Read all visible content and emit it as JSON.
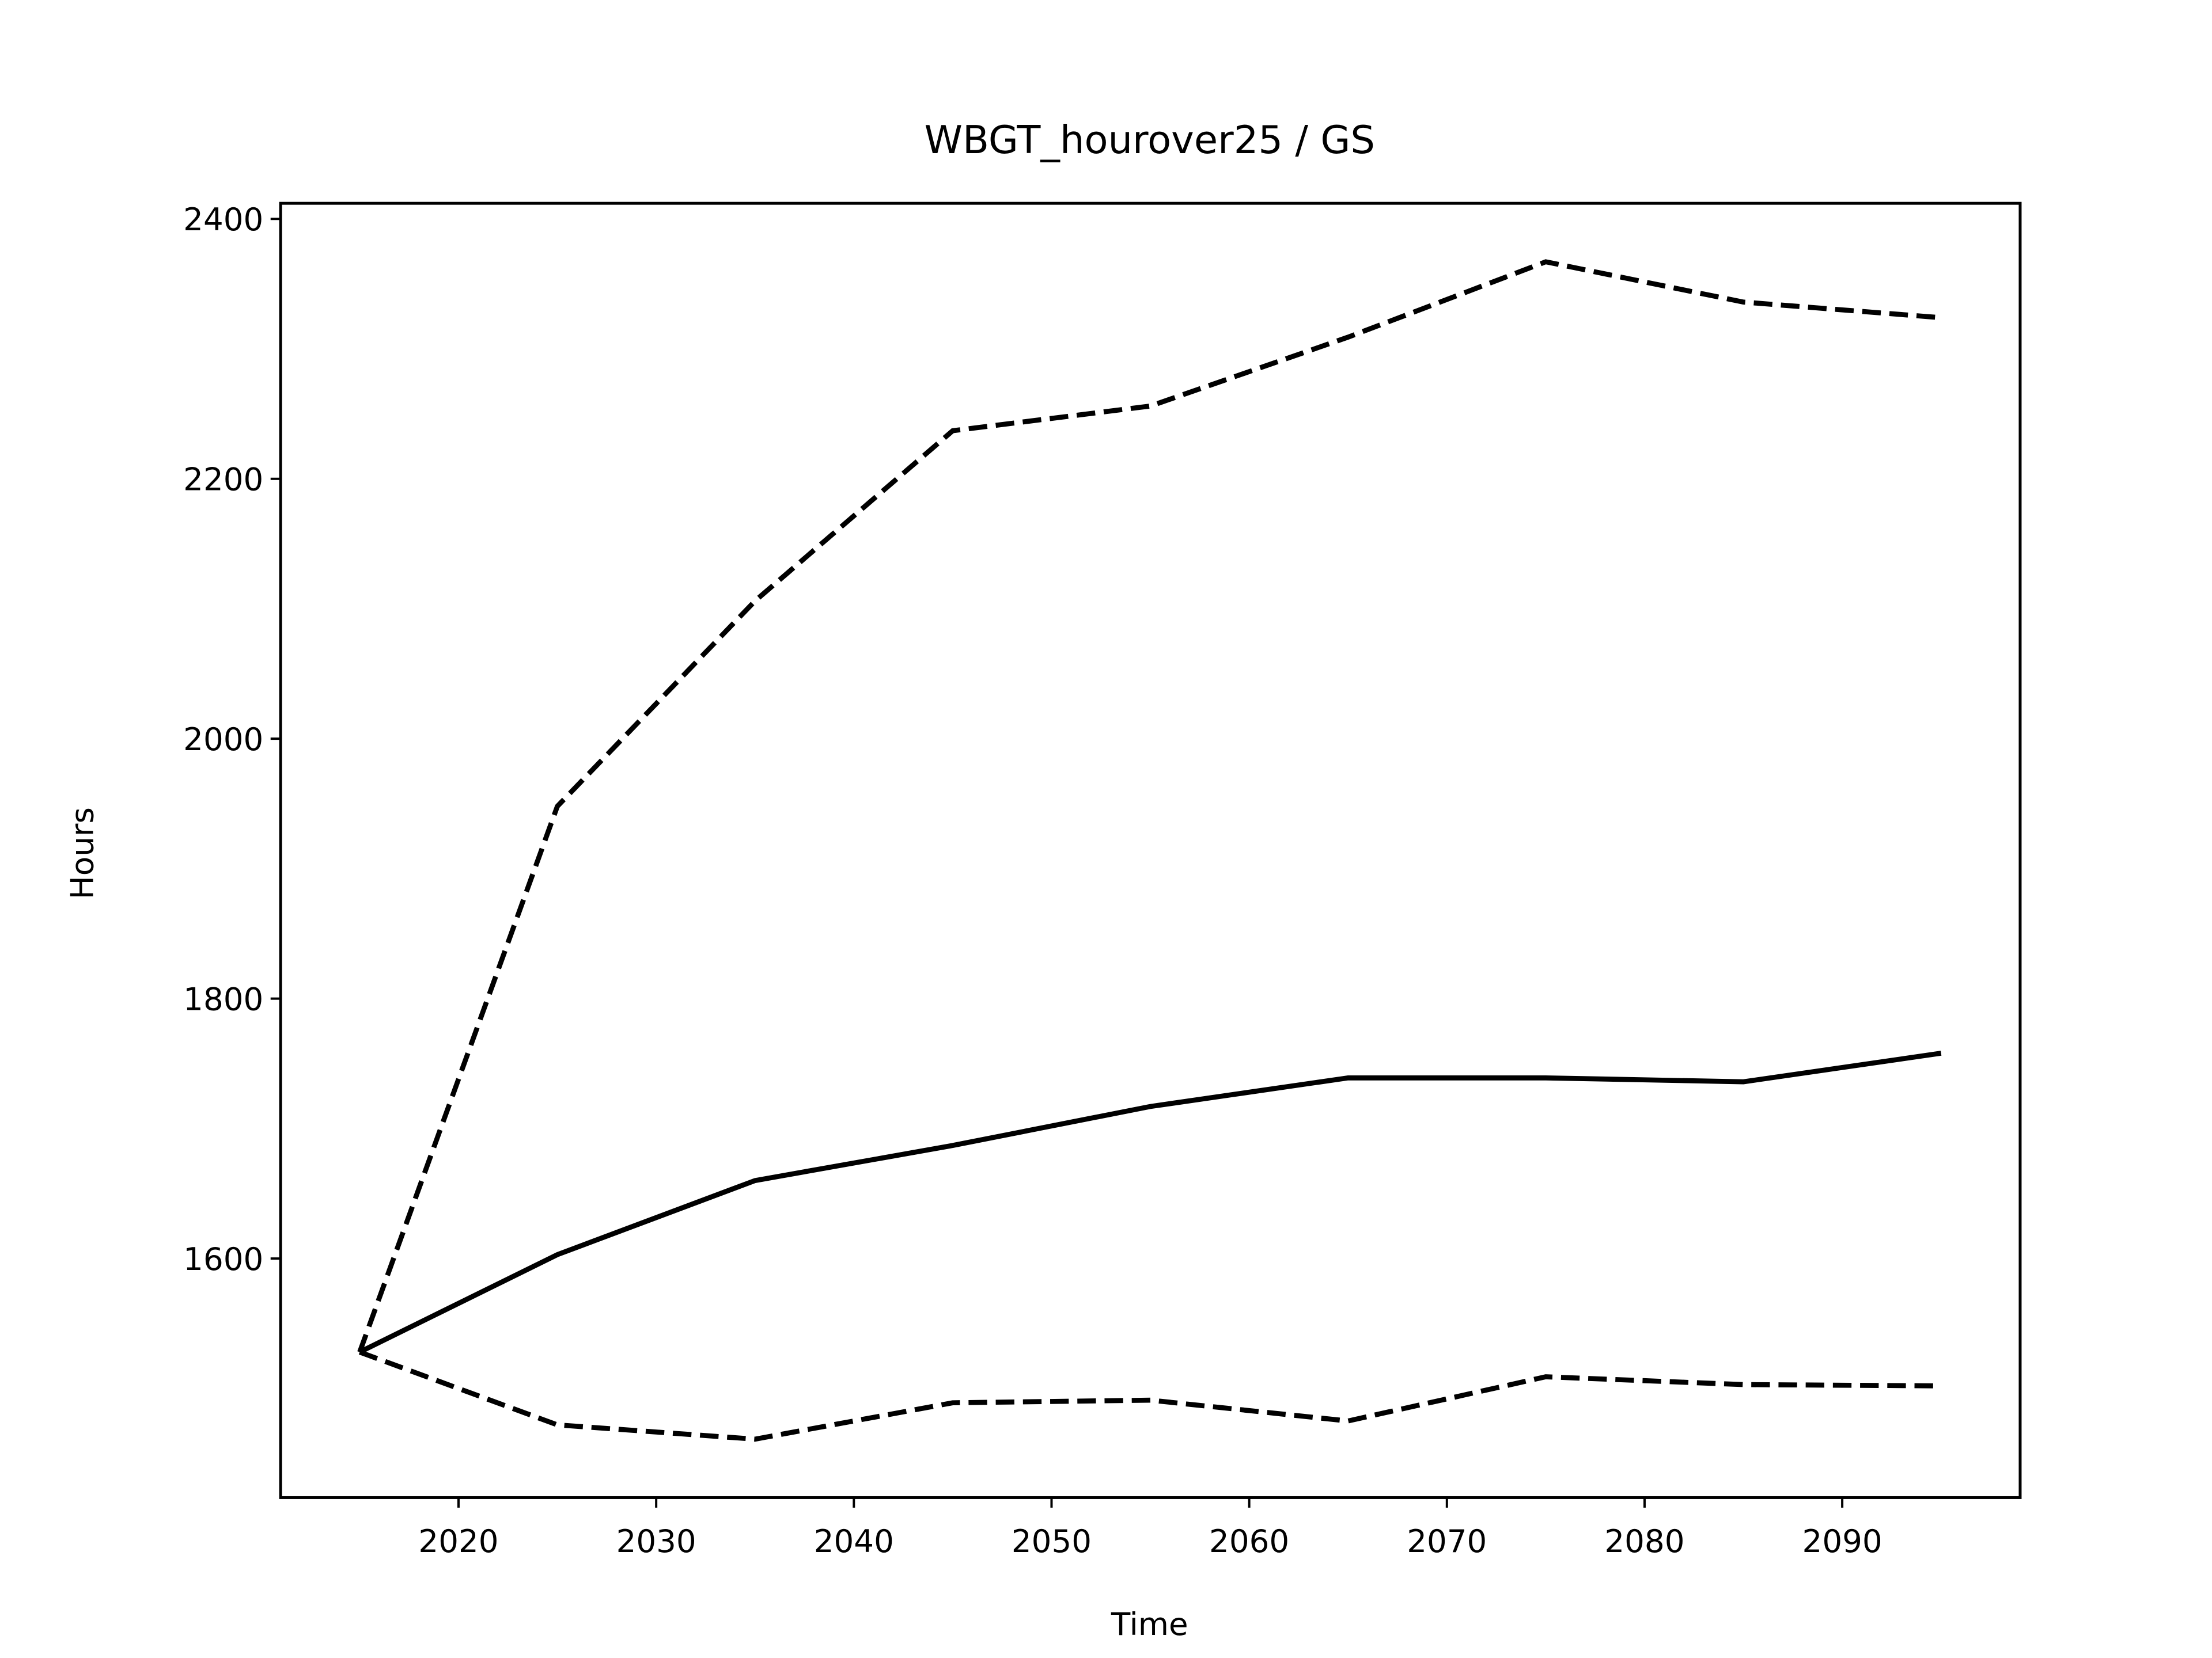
{
  "chart_data": {
    "type": "line",
    "title": "WBGT_hourover25 / GS",
    "xlabel": "Time",
    "ylabel": "Hours",
    "x": [
      2015,
      2025,
      2035,
      2045,
      2055,
      2065,
      2075,
      2085,
      2095
    ],
    "series": [
      {
        "color": "#000000",
        "linestyle": "solid",
        "values": [
          1528,
          1603,
          1660,
          1687,
          1717,
          1739,
          1739,
          1736,
          1758
        ]
      },
      {
        "color": "#000000",
        "linestyle": "dashed",
        "values": [
          1528,
          1948,
          2106,
          2237,
          2256,
          2309,
          2367,
          2336,
          2324
        ]
      },
      {
        "color": "#000000",
        "linestyle": "dashed",
        "values": [
          1528,
          1472,
          1461,
          1489,
          1491,
          1475,
          1509,
          1503,
          1502
        ]
      }
    ],
    "xlim": [
      2011,
      2099
    ],
    "xticks": [
      2020,
      2030,
      2040,
      2050,
      2060,
      2070,
      2080,
      2090
    ],
    "ylim": [
      1416,
      2412
    ],
    "yticks": [
      1600,
      1800,
      2000,
      2200,
      2400
    ],
    "grid": false
  }
}
